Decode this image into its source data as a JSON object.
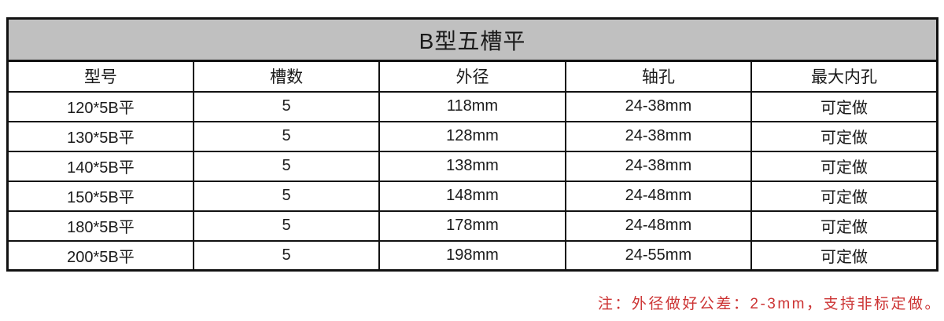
{
  "table": {
    "title": "B型五槽平",
    "headers": [
      "型号",
      "槽数",
      "外径",
      "轴孔",
      "最大内孔"
    ],
    "rows": [
      [
        "120*5B平",
        "5",
        "118mm",
        "24-38mm",
        "可定做"
      ],
      [
        "130*5B平",
        "5",
        "128mm",
        "24-38mm",
        "可定做"
      ],
      [
        "140*5B平",
        "5",
        "138mm",
        "24-38mm",
        "可定做"
      ],
      [
        "150*5B平",
        "5",
        "148mm",
        "24-48mm",
        "可定做"
      ],
      [
        "180*5B平",
        "5",
        "178mm",
        "24-48mm",
        "可定做"
      ],
      [
        "200*5B平",
        "5",
        "198mm",
        "24-55mm",
        "可定做"
      ]
    ]
  },
  "note": {
    "text": "注：外径做好公差：2-3mm，支持非标定做。"
  },
  "colors": {
    "title_background": "#c0c0c0",
    "border": "#111111",
    "text": "#1a1a1a",
    "note_red": "#cc3333",
    "page_background": "#ffffff"
  }
}
